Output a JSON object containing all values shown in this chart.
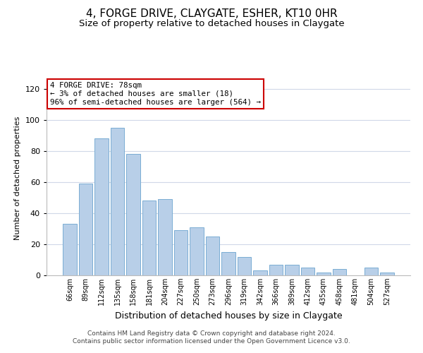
{
  "title": "4, FORGE DRIVE, CLAYGATE, ESHER, KT10 0HR",
  "subtitle": "Size of property relative to detached houses in Claygate",
  "xlabel": "Distribution of detached houses by size in Claygate",
  "ylabel": "Number of detached properties",
  "bar_color": "#b8cfe8",
  "bar_edge_color": "#7aadd4",
  "categories": [
    "66sqm",
    "89sqm",
    "112sqm",
    "135sqm",
    "158sqm",
    "181sqm",
    "204sqm",
    "227sqm",
    "250sqm",
    "273sqm",
    "296sqm",
    "319sqm",
    "342sqm",
    "366sqm",
    "389sqm",
    "412sqm",
    "435sqm",
    "458sqm",
    "481sqm",
    "504sqm",
    "527sqm"
  ],
  "values": [
    33,
    59,
    88,
    95,
    78,
    48,
    49,
    29,
    31,
    25,
    15,
    12,
    3,
    7,
    7,
    5,
    2,
    4,
    0,
    5,
    2
  ],
  "ylim": [
    0,
    125
  ],
  "yticks": [
    0,
    20,
    40,
    60,
    80,
    100,
    120
  ],
  "annotation_title": "4 FORGE DRIVE: 78sqm",
  "annotation_line1": "← 3% of detached houses are smaller (18)",
  "annotation_line2": "96% of semi-detached houses are larger (564) →",
  "annotation_box_color": "#ffffff",
  "annotation_box_edge_color": "#cc0000",
  "footer_line1": "Contains HM Land Registry data © Crown copyright and database right 2024.",
  "footer_line2": "Contains public sector information licensed under the Open Government Licence v3.0.",
  "background_color": "#ffffff",
  "grid_color": "#d0d8e8",
  "title_fontsize": 11,
  "subtitle_fontsize": 9.5,
  "xlabel_fontsize": 9,
  "ylabel_fontsize": 8,
  "footer_fontsize": 6.5
}
